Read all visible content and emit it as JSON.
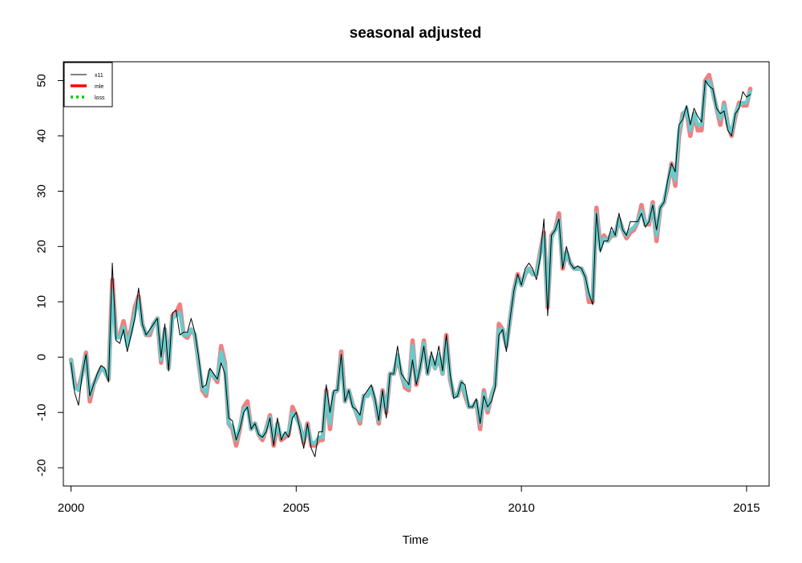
{
  "chart_data": {
    "type": "line",
    "title": "seasonal adjusted",
    "xlabel": "Time",
    "ylabel": "",
    "xlim": [
      1999.83,
      2015.5
    ],
    "ylim": [
      -23.3,
      53.4
    ],
    "xticks": [
      2000,
      2005,
      2010,
      2015
    ],
    "yticks": [
      -20,
      -10,
      0,
      10,
      20,
      30,
      40,
      50
    ],
    "grid": false,
    "legend_position": "top-left",
    "legend": [
      "x11",
      "mle",
      "loss"
    ],
    "colors": {
      "x11": "#000000",
      "mle": "#ff0000",
      "loss": "#00cc00",
      "band_mle": "#f08080",
      "band_loss": "#66cccc"
    },
    "series": [
      {
        "name": "x11",
        "x_start": 2000,
        "frequency": 12,
        "values": [
          -1,
          -6.5,
          -8.7,
          -3,
          0.5,
          -7,
          -5,
          -3,
          -1.5,
          -2,
          -4.5,
          17,
          3,
          2.5,
          5,
          1,
          4,
          7,
          12.5,
          6,
          4,
          5,
          6,
          7,
          0,
          6,
          -2.5,
          8,
          8.5,
          4,
          4.5,
          4.5,
          7,
          4.5,
          0,
          -5.5,
          -5,
          -2,
          -3,
          -4,
          -1,
          -3,
          -11,
          -11.5,
          -15,
          -13,
          -10,
          -9,
          -13,
          -12,
          -14,
          -14.5,
          -13.5,
          -11,
          -16,
          -11,
          -15,
          -13.5,
          -14.5,
          -11,
          -10,
          -13,
          -16.5,
          -12,
          -16.5,
          -18,
          -13.5,
          -13.5,
          -5,
          -10,
          -6,
          -6,
          0.5,
          -8,
          -6,
          -9,
          -9.5,
          -10.5,
          -7,
          -6,
          -5,
          -7.5,
          -11.5,
          -6,
          -11,
          -3,
          -3,
          2,
          -3,
          -4,
          -5,
          -0.5,
          -5,
          -2,
          2,
          -3,
          1,
          -1.5,
          2,
          -2.5,
          4,
          -3,
          -7.5,
          -7,
          -4.5,
          -5,
          -9,
          -9,
          -7.5,
          -12,
          -7,
          -9,
          -8,
          -5.5,
          4,
          5,
          1,
          7,
          12,
          15,
          13,
          16,
          17,
          16,
          14,
          18,
          25,
          7.5,
          22,
          23,
          25,
          16,
          20,
          17,
          16,
          16.5,
          16,
          14.5,
          11.5,
          9.5,
          26,
          19,
          21,
          21,
          23.5,
          22,
          26,
          23,
          22,
          24.5,
          24.5,
          24.5,
          26,
          23.5,
          24.5,
          27.5,
          23,
          27,
          28,
          32,
          35,
          33.5,
          42,
          43,
          45.5,
          42,
          45,
          43.5,
          42.5,
          50,
          49,
          48.5,
          45,
          44,
          44.5,
          41,
          40,
          44,
          45,
          48,
          47,
          47.5
        ]
      },
      {
        "name": "mle",
        "x_start": 2000,
        "frequency": 12,
        "values": [
          -0.5,
          -5,
          -5.5,
          -3,
          0.8,
          -8,
          -5,
          -3.5,
          -2,
          -2.5,
          -4,
          14,
          4,
          4,
          6.5,
          3,
          5,
          9,
          11,
          6,
          4,
          4,
          6,
          7,
          -1,
          5,
          -2,
          7.5,
          8,
          9.5,
          4,
          3.5,
          5,
          4,
          -1,
          -6,
          -7,
          -2.5,
          -3.5,
          -4.5,
          2,
          -1,
          -12,
          -13,
          -16,
          -13,
          -9,
          -8,
          -13,
          -12,
          -14,
          -15,
          -13,
          -10.5,
          -16,
          -12,
          -15,
          -14.5,
          -14,
          -9,
          -10.5,
          -12.5,
          -15.5,
          -12,
          -16,
          -16,
          -15,
          -15,
          -6,
          -13,
          -6.5,
          -6,
          1,
          -8,
          -6,
          -8.5,
          -10,
          -12,
          -7,
          -7,
          -5.5,
          -8,
          -12,
          -6,
          -10,
          -3,
          -3,
          0,
          -3,
          -5.5,
          -6,
          3,
          -5,
          -2,
          3,
          -3,
          0,
          -2,
          0,
          -3,
          4,
          -4,
          -7,
          -7,
          -4.5,
          -7,
          -9,
          -9,
          -8,
          -13,
          -6,
          -10,
          -7,
          -5,
          6,
          5,
          2,
          7,
          12,
          15,
          13,
          15,
          16,
          15,
          15,
          19,
          22.5,
          9,
          22,
          23,
          26,
          16,
          19,
          17,
          16,
          16,
          16,
          14.5,
          10,
          10,
          27,
          20,
          22,
          21,
          22,
          22,
          25,
          23,
          21.5,
          22.5,
          23,
          24.5,
          27.5,
          24,
          24,
          28,
          21,
          27,
          28,
          31,
          35,
          31,
          40,
          44,
          44.5,
          40,
          44,
          41,
          41,
          50,
          51,
          48,
          45,
          42,
          46,
          42,
          40,
          43.5,
          46,
          45.5,
          45.5,
          48.5
        ]
      },
      {
        "name": "loss",
        "x_start": 2000,
        "frequency": 12,
        "values": [
          -0.5,
          -5.5,
          -6,
          -3,
          0.3,
          -7,
          -5,
          -3.5,
          -2,
          -2.5,
          -4,
          12,
          3.5,
          3.5,
          5.5,
          2,
          4.5,
          8,
          10.5,
          6,
          4,
          4.5,
          6,
          7,
          -0.5,
          5,
          -2,
          7,
          7.5,
          8,
          4,
          4,
          5,
          4,
          -1,
          -5.5,
          -6.5,
          -2.5,
          -3.5,
          -4,
          1,
          -1.5,
          -12,
          -12.5,
          -15,
          -12.5,
          -9.5,
          -9,
          -13,
          -12,
          -14,
          -14.5,
          -13,
          -11,
          -15,
          -12,
          -14.5,
          -14,
          -13.5,
          -10,
          -11,
          -12.5,
          -15,
          -12.5,
          -15.5,
          -15.5,
          -14.5,
          -14.5,
          -6.5,
          -12,
          -6.5,
          -6,
          0,
          -8,
          -6,
          -8.5,
          -10,
          -11.5,
          -7,
          -7,
          -5.5,
          -8,
          -11.5,
          -6.5,
          -9.5,
          -3,
          -3,
          0.5,
          -3,
          -5,
          -5.5,
          2,
          -4.5,
          -2,
          2.5,
          -3,
          0,
          -2,
          0.5,
          -3,
          3,
          -3.5,
          -7,
          -7,
          -4.5,
          -6.5,
          -9,
          -9,
          -8,
          -12,
          -6.5,
          -9.5,
          -7,
          -5,
          5,
          5,
          2,
          7,
          12,
          14.5,
          13,
          15,
          16,
          15,
          15,
          18.5,
          22,
          9.5,
          21.5,
          23,
          25,
          16.5,
          19,
          17,
          16,
          16,
          16,
          14.5,
          11,
          10.5,
          26,
          19.5,
          21.5,
          21,
          22.5,
          22,
          25,
          23,
          22,
          23,
          23.5,
          24.5,
          26.5,
          24,
          24.5,
          27.5,
          22,
          27,
          28,
          31.5,
          34.5,
          32,
          41,
          43.5,
          45,
          41,
          44,
          42,
          42,
          49.5,
          50,
          48,
          45,
          43,
          45.5,
          42,
          40.5,
          44,
          45.5,
          46,
          46,
          48
        ]
      }
    ]
  }
}
